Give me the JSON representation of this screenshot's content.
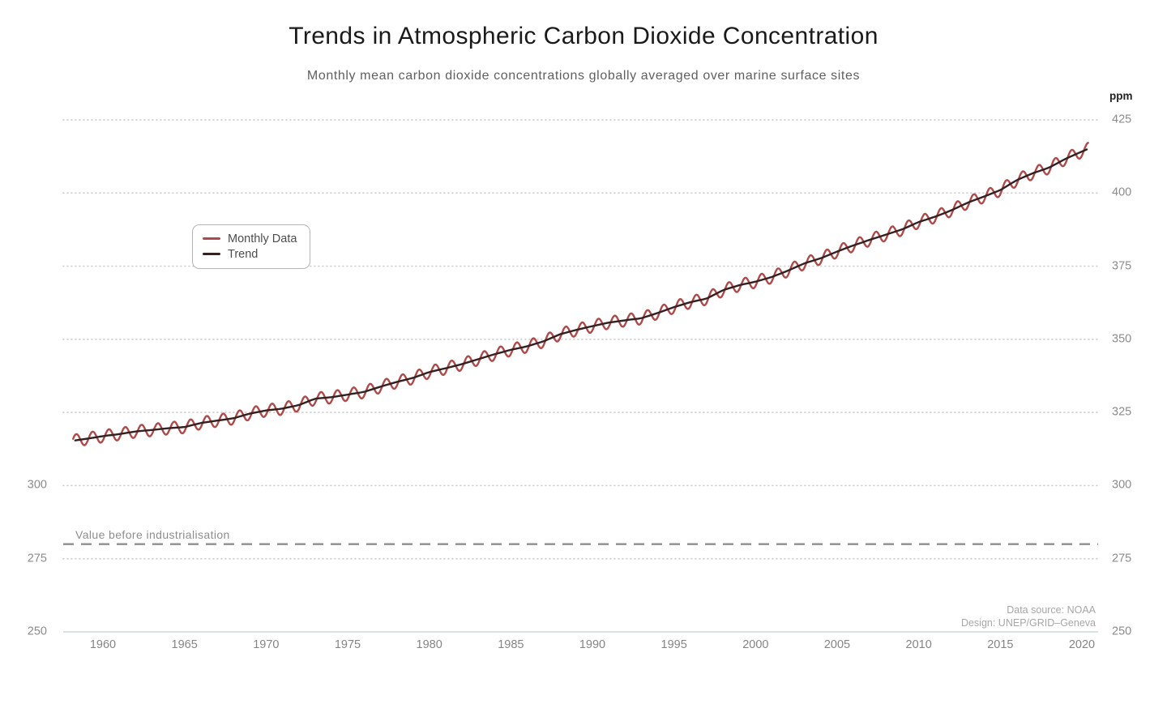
{
  "colors": {
    "monthly": "#ae4a49",
    "trend": "#332122",
    "grid": "#cdcdcd",
    "baseline": "#c9dada",
    "reference": "#8f8f8f",
    "title_text": "#1a1a1a",
    "subtitle_text": "#606060",
    "axis_text": "#8b8b8b",
    "attribution_text": "#a6a6a6",
    "annotation_text": "#8d8d8d",
    "legend_border": "#b5b5b5",
    "legend_text": "#4c4c4c"
  },
  "chart_data": {
    "type": "line",
    "title": "Trends in Atmospheric Carbon Dioxide Concentration",
    "subtitle": "Monthly mean carbon dioxide concentrations globally averaged over marine surface sites",
    "ylabel": "ppm",
    "xlim": [
      1957.6,
      2021.2
    ],
    "ylim": [
      250,
      430
    ],
    "grid": true,
    "grid_style": "dotted horizontal lines every 25 ppm",
    "legend_position": "upper-left",
    "x_ticks": [
      1960,
      1965,
      1970,
      1975,
      1980,
      1985,
      1990,
      1995,
      2000,
      2005,
      2010,
      2015,
      2020
    ],
    "y_ticks_right": [
      425,
      400,
      375,
      350,
      325,
      300,
      275,
      250
    ],
    "y_ticks_left": [
      300,
      275,
      250
    ],
    "reference_line": {
      "label": "Value before industrialisation",
      "y": 280,
      "style": "dashed"
    },
    "attribution": [
      "Data source: NOAA",
      "Design: UNEP/GRID–Geneva"
    ],
    "series": [
      {
        "name": "Monthly Data",
        "color": "#ae4a49",
        "derivation": "trend values plus seasonal cycle, amplitude ±2.1 ppm, period 12 months",
        "seasonal_amplitude_ppm": 2.1,
        "x_start": 1958.17,
        "x_end": 2020.42
      },
      {
        "name": "Trend",
        "color": "#332122",
        "years": [
          1958,
          1959,
          1960,
          1961,
          1962,
          1963,
          1964,
          1965,
          1966,
          1967,
          1968,
          1969,
          1970,
          1971,
          1972,
          1973,
          1974,
          1975,
          1976,
          1977,
          1978,
          1979,
          1980,
          1981,
          1982,
          1983,
          1984,
          1985,
          1986,
          1987,
          1988,
          1989,
          1990,
          1991,
          1992,
          1993,
          1994,
          1995,
          1996,
          1997,
          1998,
          1999,
          2000,
          2001,
          2002,
          2003,
          2004,
          2005,
          2006,
          2007,
          2008,
          2009,
          2010,
          2011,
          2012,
          2013,
          2014,
          2015,
          2016,
          2017,
          2018,
          2019,
          2020,
          2021
        ],
        "values": [
          315.2,
          316.0,
          316.9,
          317.6,
          318.5,
          319.0,
          319.6,
          320.0,
          321.4,
          322.2,
          323.0,
          324.6,
          325.7,
          326.3,
          327.5,
          329.7,
          330.2,
          331.1,
          332.0,
          333.8,
          335.4,
          336.8,
          338.8,
          340.1,
          341.5,
          343.2,
          344.9,
          346.4,
          347.6,
          349.3,
          351.7,
          353.2,
          354.5,
          355.7,
          356.5,
          357.2,
          359.0,
          361.0,
          362.7,
          363.9,
          366.8,
          368.5,
          369.7,
          371.3,
          373.5,
          376.0,
          377.7,
          380.0,
          382.1,
          384.0,
          385.8,
          387.6,
          390.1,
          391.9,
          394.1,
          396.7,
          398.8,
          401.0,
          404.4,
          406.8,
          408.7,
          411.7,
          414.2,
          416.5
        ]
      }
    ]
  }
}
